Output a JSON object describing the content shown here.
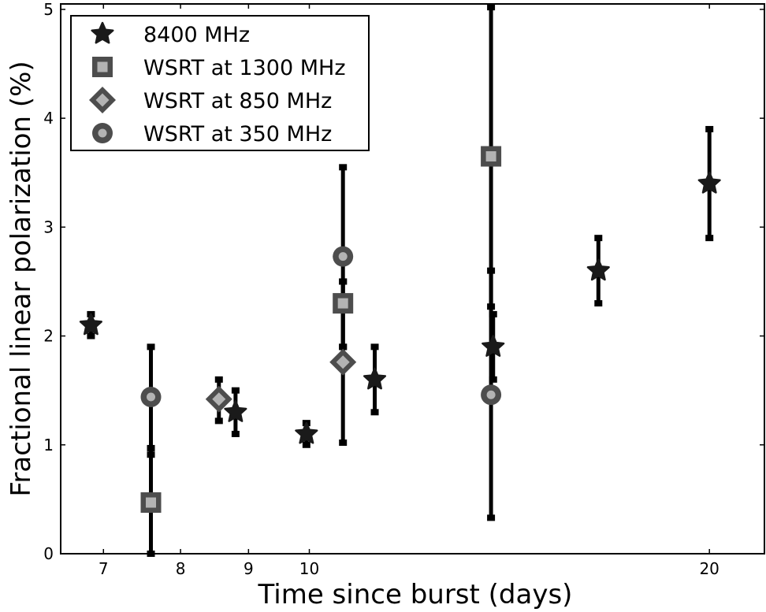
{
  "chart_data": {
    "type": "scatter",
    "title": "",
    "xlabel": "Time since burst (days)",
    "ylabel": "Fractional linear polarization (%)",
    "x_scale": "log",
    "xlim": [
      6.5,
      22
    ],
    "ylim": [
      0,
      5.05
    ],
    "x_ticks": [
      7,
      8,
      9,
      10,
      20
    ],
    "y_ticks": [
      0,
      1,
      2,
      3,
      4,
      5
    ],
    "legend_position": "top-left",
    "grid": false,
    "series": [
      {
        "name": "8400 MHz",
        "marker": "star",
        "color": "#1a1a1a",
        "points": [
          {
            "x": 6.85,
            "y": 2.1,
            "ylow": 2.0,
            "yhigh": 2.2
          },
          {
            "x": 8.8,
            "y": 1.3,
            "ylow": 1.1,
            "yhigh": 1.5
          },
          {
            "x": 9.95,
            "y": 1.1,
            "ylow": 1.0,
            "yhigh": 1.2
          },
          {
            "x": 11.2,
            "y": 1.6,
            "ylow": 1.3,
            "yhigh": 1.9
          },
          {
            "x": 13.75,
            "y": 1.9,
            "ylow": 1.6,
            "yhigh": 2.2
          },
          {
            "x": 16.5,
            "y": 2.6,
            "ylow": 2.3,
            "yhigh": 2.9
          },
          {
            "x": 20.0,
            "y": 3.4,
            "ylow": 2.9,
            "yhigh": 3.9
          }
        ]
      },
      {
        "name": "WSRT at 1300 MHz",
        "marker": "square",
        "color": "#4d4d4d",
        "fill": "#b3b3b3",
        "points": [
          {
            "x": 7.6,
            "y": 0.47,
            "ylow": 0.0,
            "yhigh": 0.97
          },
          {
            "x": 10.6,
            "y": 2.3,
            "ylow": 1.9,
            "yhigh": 2.5
          },
          {
            "x": 13.7,
            "y": 3.65,
            "ylow": 2.27,
            "yhigh": 5.02
          }
        ]
      },
      {
        "name": "WSRT at 850 MHz",
        "marker": "diamond",
        "color": "#4d4d4d",
        "fill": "#b3b3b3",
        "points": [
          {
            "x": 8.55,
            "y": 1.42,
            "ylow": 1.22,
            "yhigh": 1.6
          },
          {
            "x": 10.6,
            "y": 1.76,
            "ylow": 1.02,
            "yhigh": 2.5
          }
        ]
      },
      {
        "name": "WSRT at 350 MHz",
        "marker": "circle",
        "color": "#4d4d4d",
        "fill": "#b3b3b3",
        "points": [
          {
            "x": 7.6,
            "y": 1.44,
            "ylow": 0.91,
            "yhigh": 1.9
          },
          {
            "x": 10.6,
            "y": 2.73,
            "ylow": 1.9,
            "yhigh": 3.55
          },
          {
            "x": 13.7,
            "y": 1.46,
            "ylow": 0.33,
            "yhigh": 2.6
          }
        ]
      }
    ]
  }
}
